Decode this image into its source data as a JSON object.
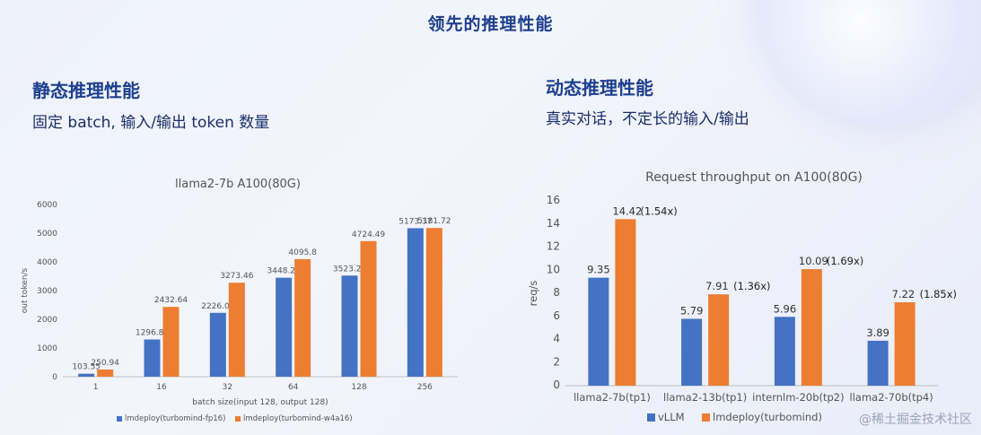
{
  "header": {
    "title": "领先的推理性能"
  },
  "left": {
    "heading": "静态推理性能",
    "subheading": "固定 batch, 输入/输出 token 数量"
  },
  "right": {
    "heading": "动态推理性能",
    "subheading": "真实对话，不定长的输入/输出"
  },
  "watermark": "@稀土掘金技术社区",
  "colors": {
    "blue": "#4472c4",
    "orange": "#ed7d31"
  },
  "chart_data": [
    {
      "type": "bar",
      "title": "llama2-7b A100(80G)",
      "xlabel": "batch size(input 128, output 128)",
      "ylabel": "out token/s",
      "ylim": [
        0,
        6000
      ],
      "yticks": [
        0,
        1000,
        2000,
        3000,
        4000,
        5000,
        6000
      ],
      "grid": false,
      "legend": "bottom",
      "categories": [
        "1",
        "16",
        "32",
        "64",
        "128",
        "256"
      ],
      "series": [
        {
          "name": "lmdeploy(turbomind-fp16)",
          "color": "#4472c4",
          "values": [
            103.55,
            1296.88,
            2226.09,
            3448.22,
            3523.22,
            5173.37
          ],
          "labels": [
            "103.55",
            "1296.88",
            "2226.09",
            "3448.22",
            "3523.22",
            "5173.37"
          ]
        },
        {
          "name": "lmdeploy(turbomind-w4a16)",
          "color": "#ed7d31",
          "values": [
            250.94,
            2432.64,
            3273.46,
            4095.8,
            4724.49,
            5181.72
          ],
          "labels": [
            "250.94",
            "2432.64",
            "3273.46",
            "4095.8",
            "4724.49",
            "5181.72"
          ]
        }
      ]
    },
    {
      "type": "bar",
      "title": "Request throughput on A100(80G)",
      "xlabel": "",
      "ylabel": "req/s",
      "ylim": [
        0,
        16
      ],
      "yticks": [
        0,
        2,
        4,
        6,
        8,
        10,
        12,
        14,
        16
      ],
      "grid": false,
      "legend": "bottom",
      "categories": [
        "llama2-7b(tp1)",
        "llama2-13b(tp1)",
        "internlm-20b(tp2)",
        "llama2-70b(tp4)"
      ],
      "series": [
        {
          "name": "vLLM",
          "color": "#4472c4",
          "values": [
            9.35,
            5.79,
            5.96,
            3.89
          ],
          "labels": [
            "9.35",
            "5.79",
            "5.96",
            "3.89"
          ]
        },
        {
          "name": "lmdeploy(turbomind)",
          "color": "#ed7d31",
          "values": [
            14.42,
            7.91,
            10.09,
            7.22
          ],
          "labels": [
            "14.42",
            "7.91",
            "10.09",
            "7.22"
          ],
          "ratios": [
            "(1.54x)",
            "(1.36x)",
            "(1.69x)",
            "(1.85x)"
          ]
        }
      ]
    }
  ]
}
